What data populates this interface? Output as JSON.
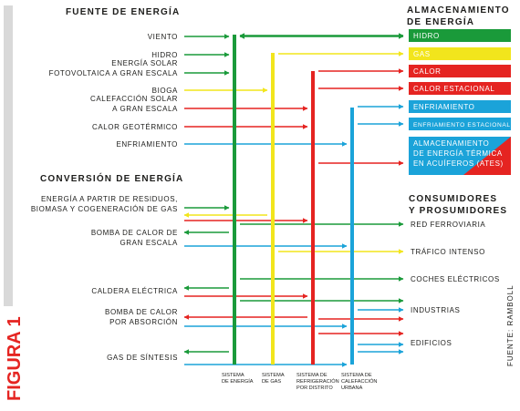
{
  "figure_label": "FIGURA 1",
  "source": "FUENTE: RAMBOLL",
  "headings": {
    "sources": "FUENTE DE ENERGÍA",
    "conversion": "CONVERSIÓN DE ENERGÍA",
    "storage": [
      "ALMACENAMIENTO",
      "DE ENERGÍA"
    ],
    "consumers": [
      "CONSUMIDORES",
      "Y PROSUMIDORES"
    ]
  },
  "colors": {
    "electricity": "#1a9a3a",
    "gas": "#f2e51c",
    "cooling": "#e52421",
    "heating": "#1ba3d9",
    "figure_bar": "#d9d9d9",
    "figure_label": "#e52421",
    "text": "#1d1d1b"
  },
  "networks": [
    {
      "id": "electricity",
      "label": [
        "SISTEMA",
        "DE ENERGÍA"
      ],
      "color": "#1a9a3a"
    },
    {
      "id": "gas",
      "label": [
        "SISTEMA",
        "DE GAS"
      ],
      "color": "#f2e51c"
    },
    {
      "id": "cooling",
      "label": [
        "SISTEMA DE",
        "REFRIGERACIÓN",
        "POR DISTRITO"
      ],
      "color": "#e52421"
    },
    {
      "id": "heating",
      "label": [
        "SISTEMA DE",
        "CALEFACCIÓN",
        "URBANA"
      ],
      "color": "#1ba3d9"
    }
  ],
  "sources": [
    {
      "label": [
        "VIENTO"
      ],
      "network": "electricity"
    },
    {
      "label": [
        "HIDRO"
      ],
      "network": "electricity"
    },
    {
      "label": [
        "ENERGÍA SOLAR",
        "FOTOVOLTAICA A GRAN ESCALA"
      ],
      "network": "electricity"
    },
    {
      "label": [
        "BIOGA"
      ],
      "network": "gas"
    },
    {
      "label": [
        "CALEFACCIÓN SOLAR",
        "A GRAN ESCALA"
      ],
      "network": "cooling"
    },
    {
      "label": [
        "CALOR GEOTÉRMICO"
      ],
      "network": "cooling"
    },
    {
      "label": [
        "ENFRIAMIENTO"
      ],
      "network": "heating"
    }
  ],
  "storage": [
    {
      "label": [
        "HIDRO"
      ],
      "color": "#1a9a3a",
      "network": "electricity"
    },
    {
      "label": [
        "GAS"
      ],
      "color": "#f2e51c",
      "network": "gas"
    },
    {
      "label": [
        "CALOR"
      ],
      "color": "#e52421",
      "network": "cooling"
    },
    {
      "label": [
        "CALOR ESTACIONAL"
      ],
      "color": "#e52421",
      "network": "cooling"
    },
    {
      "label": [
        "ENFRIAMIENTO"
      ],
      "color": "#1ba3d9",
      "network": "heating"
    },
    {
      "label": [
        "ENFRIAMIENTO ESTACIONAL"
      ],
      "color": "#1ba3d9",
      "network": "heating"
    },
    {
      "label": [
        "ALMACENAMIENTO",
        "DE ENERGÍA TÉRMICA",
        "EN ACUÍFEROS (ATES)"
      ],
      "color": "#1ba3d9",
      "color2": "#e52421",
      "network": "cooling"
    }
  ],
  "conversion": [
    {
      "label": [
        "ENERGÍA A PARTIR DE RESIDUOS,",
        "BIOMASA Y COGENERACIÓN DE GAS"
      ]
    },
    {
      "label": [
        "BOMBA DE CALOR DE",
        "GRAN ESCALA"
      ]
    },
    {
      "label": [
        "CALDERA ELÉCTRICA"
      ]
    },
    {
      "label": [
        "BOMBA DE CALOR",
        "POR ABSORCIÓN"
      ]
    },
    {
      "label": [
        "GAS DE SÍNTESIS"
      ]
    }
  ],
  "consumers": [
    {
      "label": [
        "RED FERROVIARIA"
      ]
    },
    {
      "label": [
        "TRÁFICO INTENSO"
      ]
    },
    {
      "label": [
        "COCHES ELÉCTRICOS"
      ]
    },
    {
      "label": [
        "INDUSTRIAS"
      ]
    },
    {
      "label": [
        "EDIFICIOS"
      ]
    }
  ]
}
